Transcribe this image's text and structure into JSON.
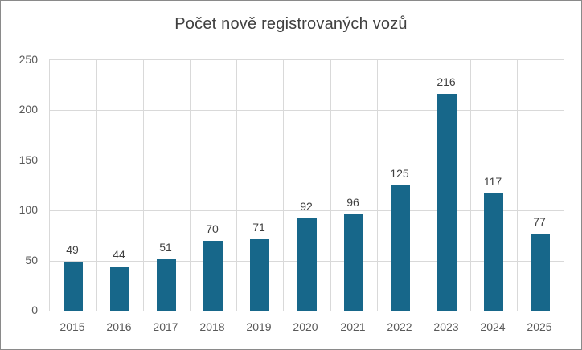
{
  "chart": {
    "title": "Počet nově registrovaných vozů"
  },
  "chart_data": {
    "type": "bar",
    "title": "Počet nově registrovaných vozů",
    "categories": [
      "2015",
      "2016",
      "2017",
      "2018",
      "2019",
      "2020",
      "2021",
      "2022",
      "2023",
      "2024",
      "2025"
    ],
    "values": [
      49,
      44,
      51,
      70,
      71,
      92,
      96,
      125,
      216,
      117,
      77
    ],
    "xlabel": "",
    "ylabel": "",
    "ylim": [
      0,
      250
    ],
    "yticks": [
      0,
      50,
      100,
      150,
      200,
      250
    ],
    "grid": true,
    "legend": false,
    "data_labels": true,
    "colors": {
      "bar": "#17678A",
      "gridline": "#d9d9d9",
      "axis_text": "#595959",
      "data_label_text": "#404040",
      "title_text": "#404040",
      "frame_border": "#8a8a8a"
    }
  }
}
